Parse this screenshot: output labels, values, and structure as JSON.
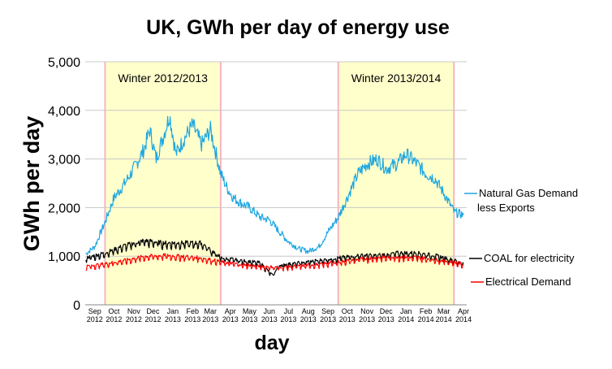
{
  "chart_data": {
    "type": "line",
    "title": "UK, GWh per day of energy use",
    "ylabel": "GWh per day",
    "xlabel": "day",
    "ylim": [
      0,
      5000
    ],
    "yticks": [
      "0",
      "1,000",
      "2,000",
      "3,000",
      "4,000",
      "5,000"
    ],
    "ytick_values": [
      0,
      1000,
      2000,
      3000,
      4000,
      5000
    ],
    "grid": true,
    "legend_placement": "right",
    "xticks": [
      {
        "month": "Sep",
        "year": "2012"
      },
      {
        "month": "Oct",
        "year": "2012"
      },
      {
        "month": "Nov",
        "year": "2012"
      },
      {
        "month": "Dec",
        "year": "2012"
      },
      {
        "month": "Jan",
        "year": "2013"
      },
      {
        "month": "Feb",
        "year": "2013"
      },
      {
        "month": "Mar",
        "year": "2013"
      },
      {
        "month": "Apr",
        "year": "2013"
      },
      {
        "month": "May",
        "year": "2013"
      },
      {
        "month": "Jun",
        "year": "2013"
      },
      {
        "month": "Jul",
        "year": "2013"
      },
      {
        "month": "Aug",
        "year": "2013"
      },
      {
        "month": "Sep",
        "year": "2013"
      },
      {
        "month": "Oct",
        "year": "2013"
      },
      {
        "month": "Nov",
        "year": "2013"
      },
      {
        "month": "Dec",
        "year": "2013"
      },
      {
        "month": "Jan",
        "year": "2014"
      },
      {
        "month": "Feb",
        "year": "2014"
      },
      {
        "month": "Mar",
        "year": "2014"
      },
      {
        "month": "Apr",
        "year": "2014"
      }
    ],
    "shaded_regions": [
      {
        "label": "Winter 2012/2013",
        "start": "2012-10-01",
        "end": "2013-03-31",
        "color": "#ffffcc",
        "border": "#f4b6c2"
      },
      {
        "label": "Winter 2013/2014",
        "start": "2013-10-01",
        "end": "2014-03-31",
        "color": "#ffffcc",
        "border": "#f4b6c2"
      }
    ],
    "series": [
      {
        "name": "Natural Gas Demand less Exports",
        "color": "#1ea7e1",
        "x": [
          "2012-09-01",
          "2012-09-15",
          "2012-10-01",
          "2012-10-15",
          "2012-11-01",
          "2012-11-15",
          "2012-12-01",
          "2012-12-10",
          "2012-12-20",
          "2013-01-01",
          "2013-01-10",
          "2013-01-20",
          "2013-02-01",
          "2013-02-15",
          "2013-03-01",
          "2013-03-15",
          "2013-03-31",
          "2013-04-10",
          "2013-04-20",
          "2013-05-01",
          "2013-05-15",
          "2013-06-01",
          "2013-06-15",
          "2013-07-01",
          "2013-07-15",
          "2013-08-01",
          "2013-08-15",
          "2013-09-01",
          "2013-09-15",
          "2013-10-01",
          "2013-10-15",
          "2013-11-01",
          "2013-11-15",
          "2013-12-01",
          "2013-12-15",
          "2014-01-01",
          "2014-01-15",
          "2014-02-01",
          "2014-02-15",
          "2014-03-01",
          "2014-03-15",
          "2014-04-01",
          "2014-04-15"
        ],
        "values": [
          1050,
          1200,
          1700,
          2200,
          2500,
          2800,
          3200,
          3600,
          3000,
          3500,
          3900,
          3100,
          3400,
          3700,
          3300,
          3600,
          2700,
          2400,
          2200,
          2100,
          2000,
          1800,
          1750,
          1500,
          1300,
          1150,
          1100,
          1200,
          1500,
          1800,
          2200,
          2700,
          2900,
          3000,
          2800,
          2900,
          3100,
          2900,
          2700,
          2600,
          2300,
          1900,
          1850
        ]
      },
      {
        "name": "COAL for electricity",
        "color": "#000000",
        "x": [
          "2012-09-01",
          "2012-10-01",
          "2012-11-01",
          "2012-12-01",
          "2013-01-01",
          "2013-02-01",
          "2013-03-01",
          "2013-04-01",
          "2013-05-01",
          "2013-06-01",
          "2013-06-20",
          "2013-07-01",
          "2013-08-01",
          "2013-09-01",
          "2013-10-01",
          "2013-11-01",
          "2013-12-01",
          "2014-01-01",
          "2014-02-01",
          "2014-03-01",
          "2014-04-01",
          "2014-04-15"
        ],
        "values": [
          950,
          1050,
          1200,
          1300,
          1250,
          1250,
          1250,
          950,
          900,
          850,
          600,
          800,
          850,
          900,
          950,
          1000,
          1000,
          1050,
          1050,
          1000,
          900,
          850
        ]
      },
      {
        "name": "Electrical Demand",
        "color": "#ff0000",
        "x": [
          "2012-09-01",
          "2012-10-01",
          "2012-11-01",
          "2012-12-01",
          "2013-01-01",
          "2013-02-01",
          "2013-03-01",
          "2013-04-01",
          "2013-05-01",
          "2013-06-01",
          "2013-07-01",
          "2013-08-01",
          "2013-09-01",
          "2013-10-01",
          "2013-11-01",
          "2013-12-01",
          "2014-01-01",
          "2014-02-01",
          "2014-03-01",
          "2014-04-01",
          "2014-04-15"
        ],
        "values": [
          780,
          830,
          900,
          980,
          1000,
          980,
          950,
          870,
          820,
          780,
          760,
          790,
          820,
          870,
          920,
          960,
          970,
          960,
          920,
          860,
          820
        ]
      }
    ]
  }
}
